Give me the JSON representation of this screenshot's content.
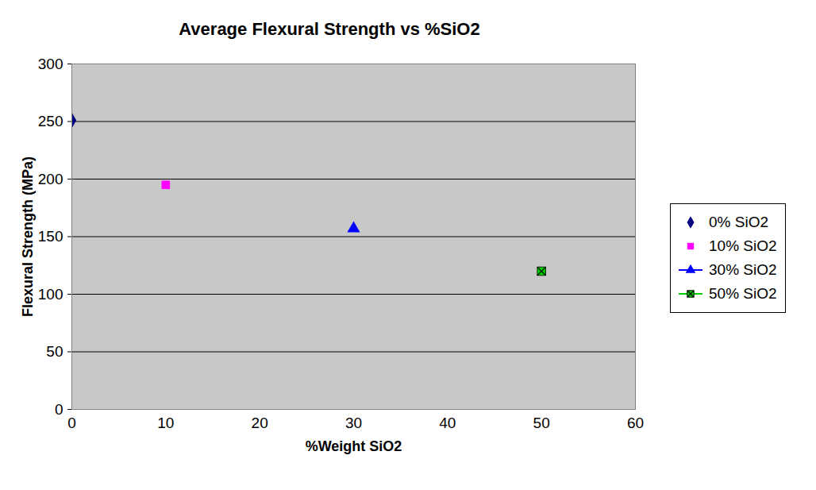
{
  "chart_data": {
    "type": "scatter",
    "title": "Average Flexural Strength vs %SiO2",
    "x_label": "%Weight SiO2",
    "y_label": "Flexural Strength (MPa)",
    "xlim": [
      0,
      60
    ],
    "xticks": [
      0,
      10,
      20,
      30,
      40,
      50,
      60
    ],
    "ylim": [
      0,
      300
    ],
    "yticks": [
      0,
      50,
      100,
      150,
      200,
      250,
      300
    ],
    "grid": true,
    "legend": "right",
    "series": [
      {
        "name": "0% SiO2",
        "color": "#000080",
        "marker": "diamond",
        "x": [
          0
        ],
        "values": [
          251
        ]
      },
      {
        "name": "10% SiO2",
        "color": "#ff00ff",
        "marker": "square",
        "x": [
          10
        ],
        "values": [
          195
        ]
      },
      {
        "name": "30% SiO2",
        "color": "#0000ff",
        "marker": "triangle",
        "line_style": "solid",
        "x": [
          30
        ],
        "values": [
          157
        ]
      },
      {
        "name": "50% SiO2",
        "color": "#00cc00",
        "marker": "square-x",
        "line_style": "solid",
        "x": [
          50
        ],
        "values": [
          120
        ]
      }
    ]
  }
}
